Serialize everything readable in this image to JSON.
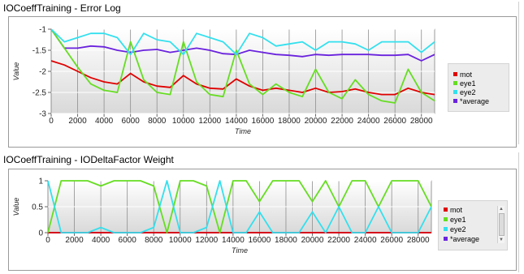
{
  "sections": [
    {
      "title": "IOCoeffTraining - Error Log"
    },
    {
      "title": "IOCoeffTraining - IODeltaFactor Weight"
    }
  ],
  "colors": {
    "mot": "#e00000",
    "eye1": "#66dd22",
    "eye2": "#33e0ee",
    "average": "#6a22dd",
    "plot_bg": "#d9d9d9",
    "grid": "#ffffff"
  },
  "chart_data": [
    {
      "type": "line",
      "title": "",
      "xlabel": "Time",
      "ylabel": "Value",
      "xlim": [
        0,
        29000
      ],
      "ylim": [
        -3,
        -1
      ],
      "xticks": [
        0,
        2000,
        4000,
        6000,
        8000,
        10000,
        12000,
        14000,
        16000,
        18000,
        20000,
        22000,
        24000,
        26000,
        28000
      ],
      "yticks": [
        -1,
        -1.5,
        -2,
        -2.5,
        -3
      ],
      "ytick_labels": [
        "-1",
        "-1.5",
        "-2",
        "-2.5",
        "-3"
      ],
      "legend": [
        "mot",
        "eye1",
        "eye2",
        "*average"
      ],
      "legend_position": "right",
      "series": [
        {
          "name": "mot",
          "color": "#e00000",
          "x": [
            0,
            1000,
            2000,
            3000,
            4000,
            5000,
            6000,
            7000,
            8000,
            9000,
            10000,
            11000,
            12000,
            13000,
            14000,
            15000,
            16000,
            17000,
            18000,
            19000,
            20000,
            21000,
            22000,
            23000,
            24000,
            25000,
            26000,
            27000,
            28000,
            29000
          ],
          "y": [
            -1.75,
            -1.85,
            -2.0,
            -2.15,
            -2.25,
            -2.3,
            -2.05,
            -2.25,
            -2.35,
            -2.38,
            -2.1,
            -2.3,
            -2.4,
            -2.42,
            -2.18,
            -2.35,
            -2.45,
            -2.4,
            -2.45,
            -2.5,
            -2.4,
            -2.5,
            -2.48,
            -2.42,
            -2.5,
            -2.55,
            -2.55,
            -2.4,
            -2.5,
            -2.55
          ]
        },
        {
          "name": "eye1",
          "color": "#66dd22",
          "x": [
            0,
            1000,
            2000,
            3000,
            4000,
            5000,
            6000,
            7000,
            8000,
            9000,
            10000,
            11000,
            12000,
            13000,
            14000,
            15000,
            16000,
            17000,
            18000,
            19000,
            20000,
            21000,
            22000,
            23000,
            24000,
            25000,
            26000,
            27000,
            28000,
            29000
          ],
          "y": [
            -1.0,
            -1.45,
            -1.9,
            -2.3,
            -2.45,
            -2.5,
            -1.3,
            -2.2,
            -2.5,
            -2.55,
            -1.3,
            -2.25,
            -2.55,
            -2.6,
            -1.5,
            -2.3,
            -2.55,
            -2.3,
            -2.5,
            -2.6,
            -1.95,
            -2.5,
            -2.65,
            -2.2,
            -2.55,
            -2.7,
            -2.75,
            -1.95,
            -2.5,
            -2.7
          ]
        },
        {
          "name": "eye2",
          "color": "#33e0ee",
          "x": [
            0,
            1000,
            2000,
            3000,
            4000,
            5000,
            6000,
            7000,
            8000,
            9000,
            10000,
            11000,
            12000,
            13000,
            14000,
            15000,
            16000,
            17000,
            18000,
            19000,
            20000,
            21000,
            22000,
            23000,
            24000,
            25000,
            26000,
            27000,
            28000,
            29000
          ],
          "y": [
            -1.0,
            -1.3,
            -1.2,
            -1.1,
            -1.1,
            -1.2,
            -1.6,
            -1.1,
            -1.25,
            -1.3,
            -1.6,
            -1.1,
            -1.2,
            -1.3,
            -1.6,
            -1.1,
            -1.2,
            -1.4,
            -1.35,
            -1.3,
            -1.5,
            -1.3,
            -1.3,
            -1.35,
            -1.5,
            -1.3,
            -1.3,
            -1.3,
            -1.55,
            -1.3
          ]
        },
        {
          "name": "*average",
          "color": "#6a22dd",
          "x": [
            0,
            1000,
            2000,
            3000,
            4000,
            5000,
            6000,
            7000,
            8000,
            9000,
            10000,
            11000,
            12000,
            13000,
            14000,
            15000,
            16000,
            17000,
            18000,
            19000,
            20000,
            21000,
            22000,
            23000,
            24000,
            25000,
            26000,
            27000,
            28000,
            29000
          ],
          "y": [
            -1.0,
            -1.45,
            -1.45,
            -1.4,
            -1.42,
            -1.5,
            -1.55,
            -1.5,
            -1.48,
            -1.55,
            -1.5,
            -1.45,
            -1.5,
            -1.58,
            -1.6,
            -1.5,
            -1.55,
            -1.6,
            -1.62,
            -1.65,
            -1.6,
            -1.62,
            -1.6,
            -1.6,
            -1.6,
            -1.62,
            -1.62,
            -1.6,
            -1.75,
            -1.6
          ]
        }
      ]
    },
    {
      "type": "line",
      "title": "",
      "xlabel": "Time",
      "ylabel": "Value",
      "xlim": [
        0,
        29000
      ],
      "ylim": [
        0,
        1
      ],
      "xticks": [
        0,
        2000,
        4000,
        6000,
        8000,
        10000,
        12000,
        14000,
        16000,
        18000,
        20000,
        22000,
        24000,
        26000,
        28000
      ],
      "yticks": [
        1,
        0.5,
        0
      ],
      "ytick_labels": [
        "1",
        "0.5",
        "0"
      ],
      "legend": [
        "mot",
        "eye1",
        "eye2",
        "*average"
      ],
      "legend_position": "right",
      "series": [
        {
          "name": "mot",
          "color": "#e00000",
          "x": [
            0,
            29000
          ],
          "y": [
            0,
            0
          ]
        },
        {
          "name": "eye1",
          "color": "#66dd22",
          "x": [
            0,
            1000,
            2000,
            3000,
            4000,
            5000,
            6000,
            7000,
            8000,
            9000,
            10000,
            11000,
            12000,
            13000,
            14000,
            15000,
            16000,
            17000,
            18000,
            19000,
            20000,
            21000,
            22000,
            23000,
            24000,
            25000,
            26000,
            27000,
            28000,
            29000
          ],
          "y": [
            0,
            1,
            1,
            1,
            0.9,
            1,
            1,
            1,
            0.9,
            0,
            1,
            1,
            0.9,
            0,
            1,
            1,
            0.6,
            1,
            1,
            1,
            0.6,
            1,
            0.5,
            1,
            1,
            0.5,
            1,
            1,
            1,
            0.5
          ]
        },
        {
          "name": "eye2",
          "color": "#33e0ee",
          "x": [
            0,
            1000,
            2000,
            3000,
            4000,
            5000,
            6000,
            7000,
            8000,
            9000,
            10000,
            11000,
            12000,
            13000,
            14000,
            15000,
            16000,
            17000,
            18000,
            19000,
            20000,
            21000,
            22000,
            23000,
            24000,
            25000,
            26000,
            27000,
            28000,
            29000
          ],
          "y": [
            1,
            0,
            0,
            0,
            0.1,
            0,
            0,
            0,
            0.1,
            1,
            0,
            0,
            0.1,
            1,
            0,
            0,
            0.4,
            0,
            0,
            0,
            0.4,
            0,
            0.5,
            0,
            0,
            0.5,
            0,
            0,
            0,
            0.5
          ]
        },
        {
          "name": "*average",
          "color": "#6a22dd",
          "x": [
            0,
            29000
          ],
          "y": [
            0,
            0
          ]
        }
      ]
    }
  ]
}
